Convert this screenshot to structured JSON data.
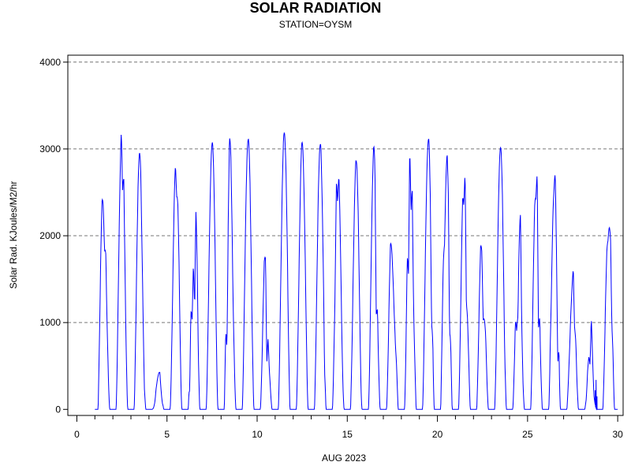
{
  "chart_data": {
    "type": "line",
    "title": "SOLAR RADIATION",
    "subtitle": "STATION=OYSM",
    "xlabel": "AUG 2023",
    "ylabel": "Solar Rad. KJoules/M2/hr",
    "xlim": [
      -0.5,
      30.3
    ],
    "ylim": [
      -70,
      4080
    ],
    "x_ticks": [
      0,
      5,
      10,
      15,
      20,
      25,
      30
    ],
    "y_ticks": [
      0,
      1000,
      2000,
      3000,
      4000
    ],
    "grid": "horizontal dashed",
    "series_color": "#0000ff",
    "days": [
      {
        "d": 1,
        "peak": 2790,
        "shape": [
          0.68,
          0.82,
          0.96,
          0.99,
          0.85,
          0.66,
          0.74,
          0.55,
          0.4,
          0.2
        ]
      },
      {
        "d": 2,
        "peak": 3250,
        "shape": [
          0.4,
          0.65,
          0.82,
          0.93,
          1.0,
          0.78,
          0.94,
          0.72,
          0.5,
          0.3
        ]
      },
      {
        "d": 3,
        "peak": 3000,
        "shape": [
          0.45,
          0.7,
          0.88,
          0.98,
          1.0,
          0.95,
          0.75,
          0.55,
          0.23,
          0.2
        ]
      },
      {
        "d": 4,
        "peak": 490,
        "shape": [
          0.06,
          0.1,
          0.25,
          0.55,
          0.7,
          0.85,
          1.0,
          0.65,
          0.4,
          0.5
        ]
      },
      {
        "d": 5,
        "peak": 2850,
        "shape": [
          0.38,
          0.6,
          0.8,
          0.95,
          1.0,
          0.87,
          0.95,
          0.85,
          0.6,
          0.3
        ]
      },
      {
        "d": 6,
        "peak": 2660,
        "shape": [
          0.5,
          0.23,
          0.65,
          0.44,
          0.64,
          0.44,
          1.0,
          0.95,
          0.6,
          0.35
        ]
      },
      {
        "d": 7,
        "peak": 3110,
        "shape": [
          0.4,
          0.6,
          0.77,
          0.9,
          0.97,
          1.0,
          0.96,
          0.85,
          0.65,
          0.4
        ]
      },
      {
        "d": 8,
        "peak": 3170,
        "shape": [
          0.72,
          0.75,
          0.33,
          0.76,
          1.0,
          0.95,
          0.78,
          0.55,
          0.4,
          0.2
        ]
      },
      {
        "d": 9,
        "peak": 3140,
        "shape": [
          0.4,
          0.65,
          0.82,
          0.93,
          0.98,
          1.0,
          0.95,
          0.8,
          0.6,
          0.35
        ]
      },
      {
        "d": 10,
        "peak": 1960,
        "shape": [
          0.35,
          0.6,
          0.85,
          1.0,
          0.9,
          0.27,
          0.48,
          0.36,
          0.3,
          0.2
        ]
      },
      {
        "d": 11,
        "peak": 3200,
        "shape": [
          0.4,
          0.62,
          0.8,
          0.92,
          0.99,
          1.0,
          0.97,
          0.88,
          0.65,
          0.42
        ]
      },
      {
        "d": 12,
        "peak": 3090,
        "shape": [
          0.42,
          0.62,
          0.8,
          0.93,
          1.0,
          0.99,
          0.92,
          0.8,
          0.6,
          0.35
        ]
      },
      {
        "d": 13,
        "peak": 3080,
        "shape": [
          0.4,
          0.62,
          0.8,
          0.93,
          0.98,
          1.0,
          0.9,
          0.78,
          0.38,
          0.43
        ]
      },
      {
        "d": 14,
        "peak": 3000,
        "shape": [
          0.36,
          0.55,
          0.7,
          1.0,
          0.8,
          0.91,
          0.8,
          0.6,
          0.35,
          0.2
        ]
      },
      {
        "d": 15,
        "peak": 2890,
        "shape": [
          0.4,
          0.6,
          0.8,
          0.92,
          1.0,
          0.98,
          0.9,
          0.7,
          0.4,
          0.02
        ]
      },
      {
        "d": 16,
        "peak": 3090,
        "shape": [
          0.4,
          0.65,
          0.85,
          0.95,
          1.0,
          0.92,
          0.39,
          0.57,
          0.4,
          0.25
        ]
      },
      {
        "d": 17,
        "peak": 2190,
        "shape": [
          0.4,
          0.65,
          0.9,
          1.0,
          0.85,
          0.7,
          0.57,
          0.5,
          0.57,
          0.5
        ]
      },
      {
        "d": 18,
        "peak": 3060,
        "shape": [
          0.4,
          0.65,
          0.88,
          0.57,
          1.0,
          0.75,
          0.95,
          0.6,
          0.52,
          0.4
        ]
      },
      {
        "d": 19,
        "peak": 3140,
        "shape": [
          0.45,
          0.65,
          0.82,
          0.93,
          0.98,
          1.0,
          0.9,
          0.48,
          0.66,
          0.4
        ]
      },
      {
        "d": 20,
        "peak": 3000,
        "shape": [
          0.55,
          0.78,
          0.86,
          0.72,
          0.87,
          1.0,
          0.95,
          0.45,
          0.65,
          0.4
        ]
      },
      {
        "d": 21,
        "peak": 2790,
        "shape": [
          0.58,
          0.7,
          0.88,
          1.0,
          0.85,
          0.99,
          0.5,
          0.56,
          0.5,
          0.4
        ]
      },
      {
        "d": 22,
        "peak": 2160,
        "shape": [
          0.45,
          0.7,
          0.9,
          1.0,
          0.85,
          0.48,
          0.55,
          0.61,
          0.45,
          0.3
        ]
      },
      {
        "d": 23,
        "peak": 3030,
        "shape": [
          0.4,
          0.6,
          0.8,
          0.93,
          0.99,
          1.0,
          0.93,
          0.75,
          0.47,
          0.45
        ]
      },
      {
        "d": 24,
        "peak": 2590,
        "shape": [
          0.25,
          0.45,
          0.6,
          0.4,
          0.42,
          0.75,
          1.0,
          0.6,
          0.35,
          0.2
        ]
      },
      {
        "d": 25,
        "peak": 2760,
        "shape": [
          0.5,
          0.7,
          0.9,
          0.98,
          0.89,
          1.0,
          0.37,
          0.59,
          0.4,
          0.2
        ]
      },
      {
        "d": 26,
        "peak": 2750,
        "shape": [
          0.5,
          0.7,
          0.76,
          0.9,
          0.93,
          1.0,
          0.75,
          0.28,
          0.66,
          0.3
        ]
      },
      {
        "d": 27,
        "peak": 1650,
        "shape": [
          0.3,
          0.48,
          0.6,
          0.75,
          0.85,
          1.0,
          0.65,
          0.73,
          0.5,
          0.3
        ]
      },
      {
        "d": 28,
        "peak": 1070,
        "shape": [
          0.35,
          0.3,
          0.6,
          0.65,
          0.48,
          1.0,
          0.65,
          0.25,
          0.15,
          0.1
        ]
      },
      {
        "d": 29,
        "peak": 2240,
        "shape": [
          0.45,
          0.65,
          0.85,
          0.93,
          0.88,
          0.95,
          1.0,
          0.66,
          0.73,
          0.35
        ]
      }
    ],
    "extra_points": [
      [
        28.75,
        220
      ],
      [
        28.8,
        340
      ],
      [
        28.85,
        150
      ],
      [
        28.9,
        0
      ]
    ]
  }
}
